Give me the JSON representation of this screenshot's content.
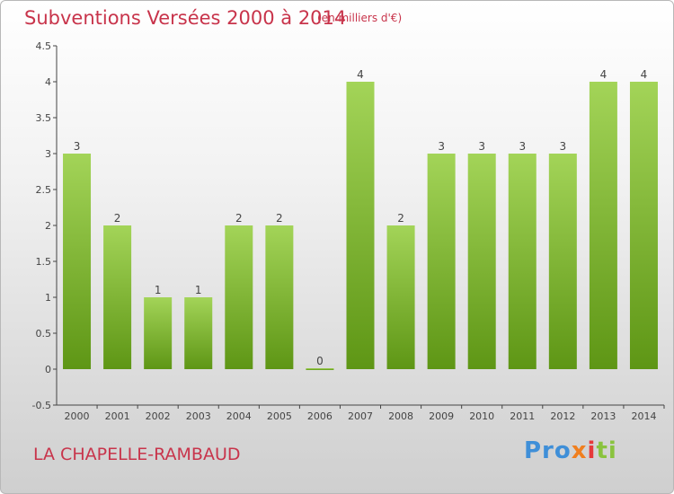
{
  "header": {
    "title": "Subventions Versées 2000 à 2014",
    "unit": "(en milliers d'€)"
  },
  "footer": {
    "commune": "LA CHAPELLE-RAMBAUD",
    "logo_parts": [
      "Pro",
      "x",
      "i",
      "ti"
    ]
  },
  "colors": {
    "title": "#c8344b",
    "bar_top": "#a3d458",
    "bar_bottom": "#5e9615",
    "axis": "#444444"
  },
  "chart_data": {
    "type": "bar",
    "title": "Subventions Versées 2000 à 2014",
    "subtitle": "(en milliers d'€)",
    "categories": [
      "2000",
      "2001",
      "2002",
      "2003",
      "2004",
      "2005",
      "2006",
      "2007",
      "2008",
      "2009",
      "2010",
      "2011",
      "2012",
      "2013",
      "2014"
    ],
    "values": [
      3,
      2,
      1,
      1,
      2,
      2,
      0,
      4,
      2,
      3,
      3,
      3,
      3,
      4,
      4
    ],
    "data_labels": [
      "3",
      "2",
      "1",
      "1",
      "2",
      "2",
      "0",
      "4",
      "2",
      "3",
      "3",
      "3",
      "3",
      "4",
      "4"
    ],
    "yticks": [
      "-0.5",
      "0",
      "0.5",
      "1",
      "1.5",
      "2",
      "2.5",
      "3",
      "3.5",
      "4",
      "4.5"
    ],
    "ylim": [
      -0.5,
      4.5
    ],
    "grid": false,
    "legend": false
  }
}
